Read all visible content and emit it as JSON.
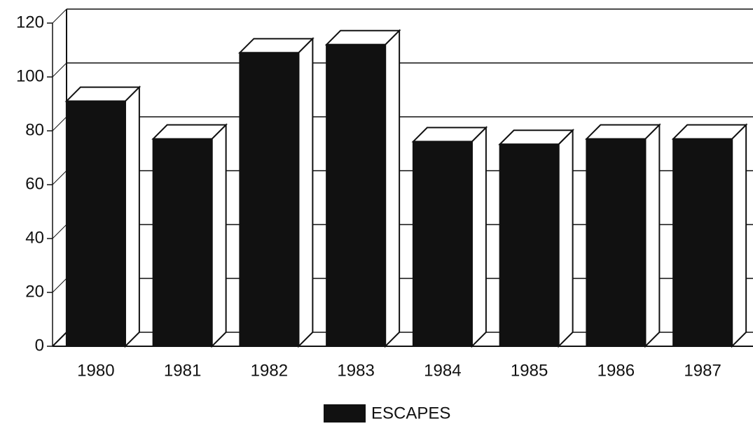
{
  "chart_data": {
    "type": "bar",
    "categories": [
      "1980",
      "1981",
      "1982",
      "1983",
      "1984",
      "1985",
      "1986",
      "1987"
    ],
    "series": [
      {
        "name": "ESCAPES",
        "color": "#111111",
        "values": [
          91,
          77,
          109,
          112,
          76,
          75,
          77,
          77
        ]
      }
    ],
    "ylim": [
      0,
      120
    ],
    "yticks": [
      0,
      20,
      40,
      60,
      80,
      100,
      120
    ],
    "grid": true
  }
}
